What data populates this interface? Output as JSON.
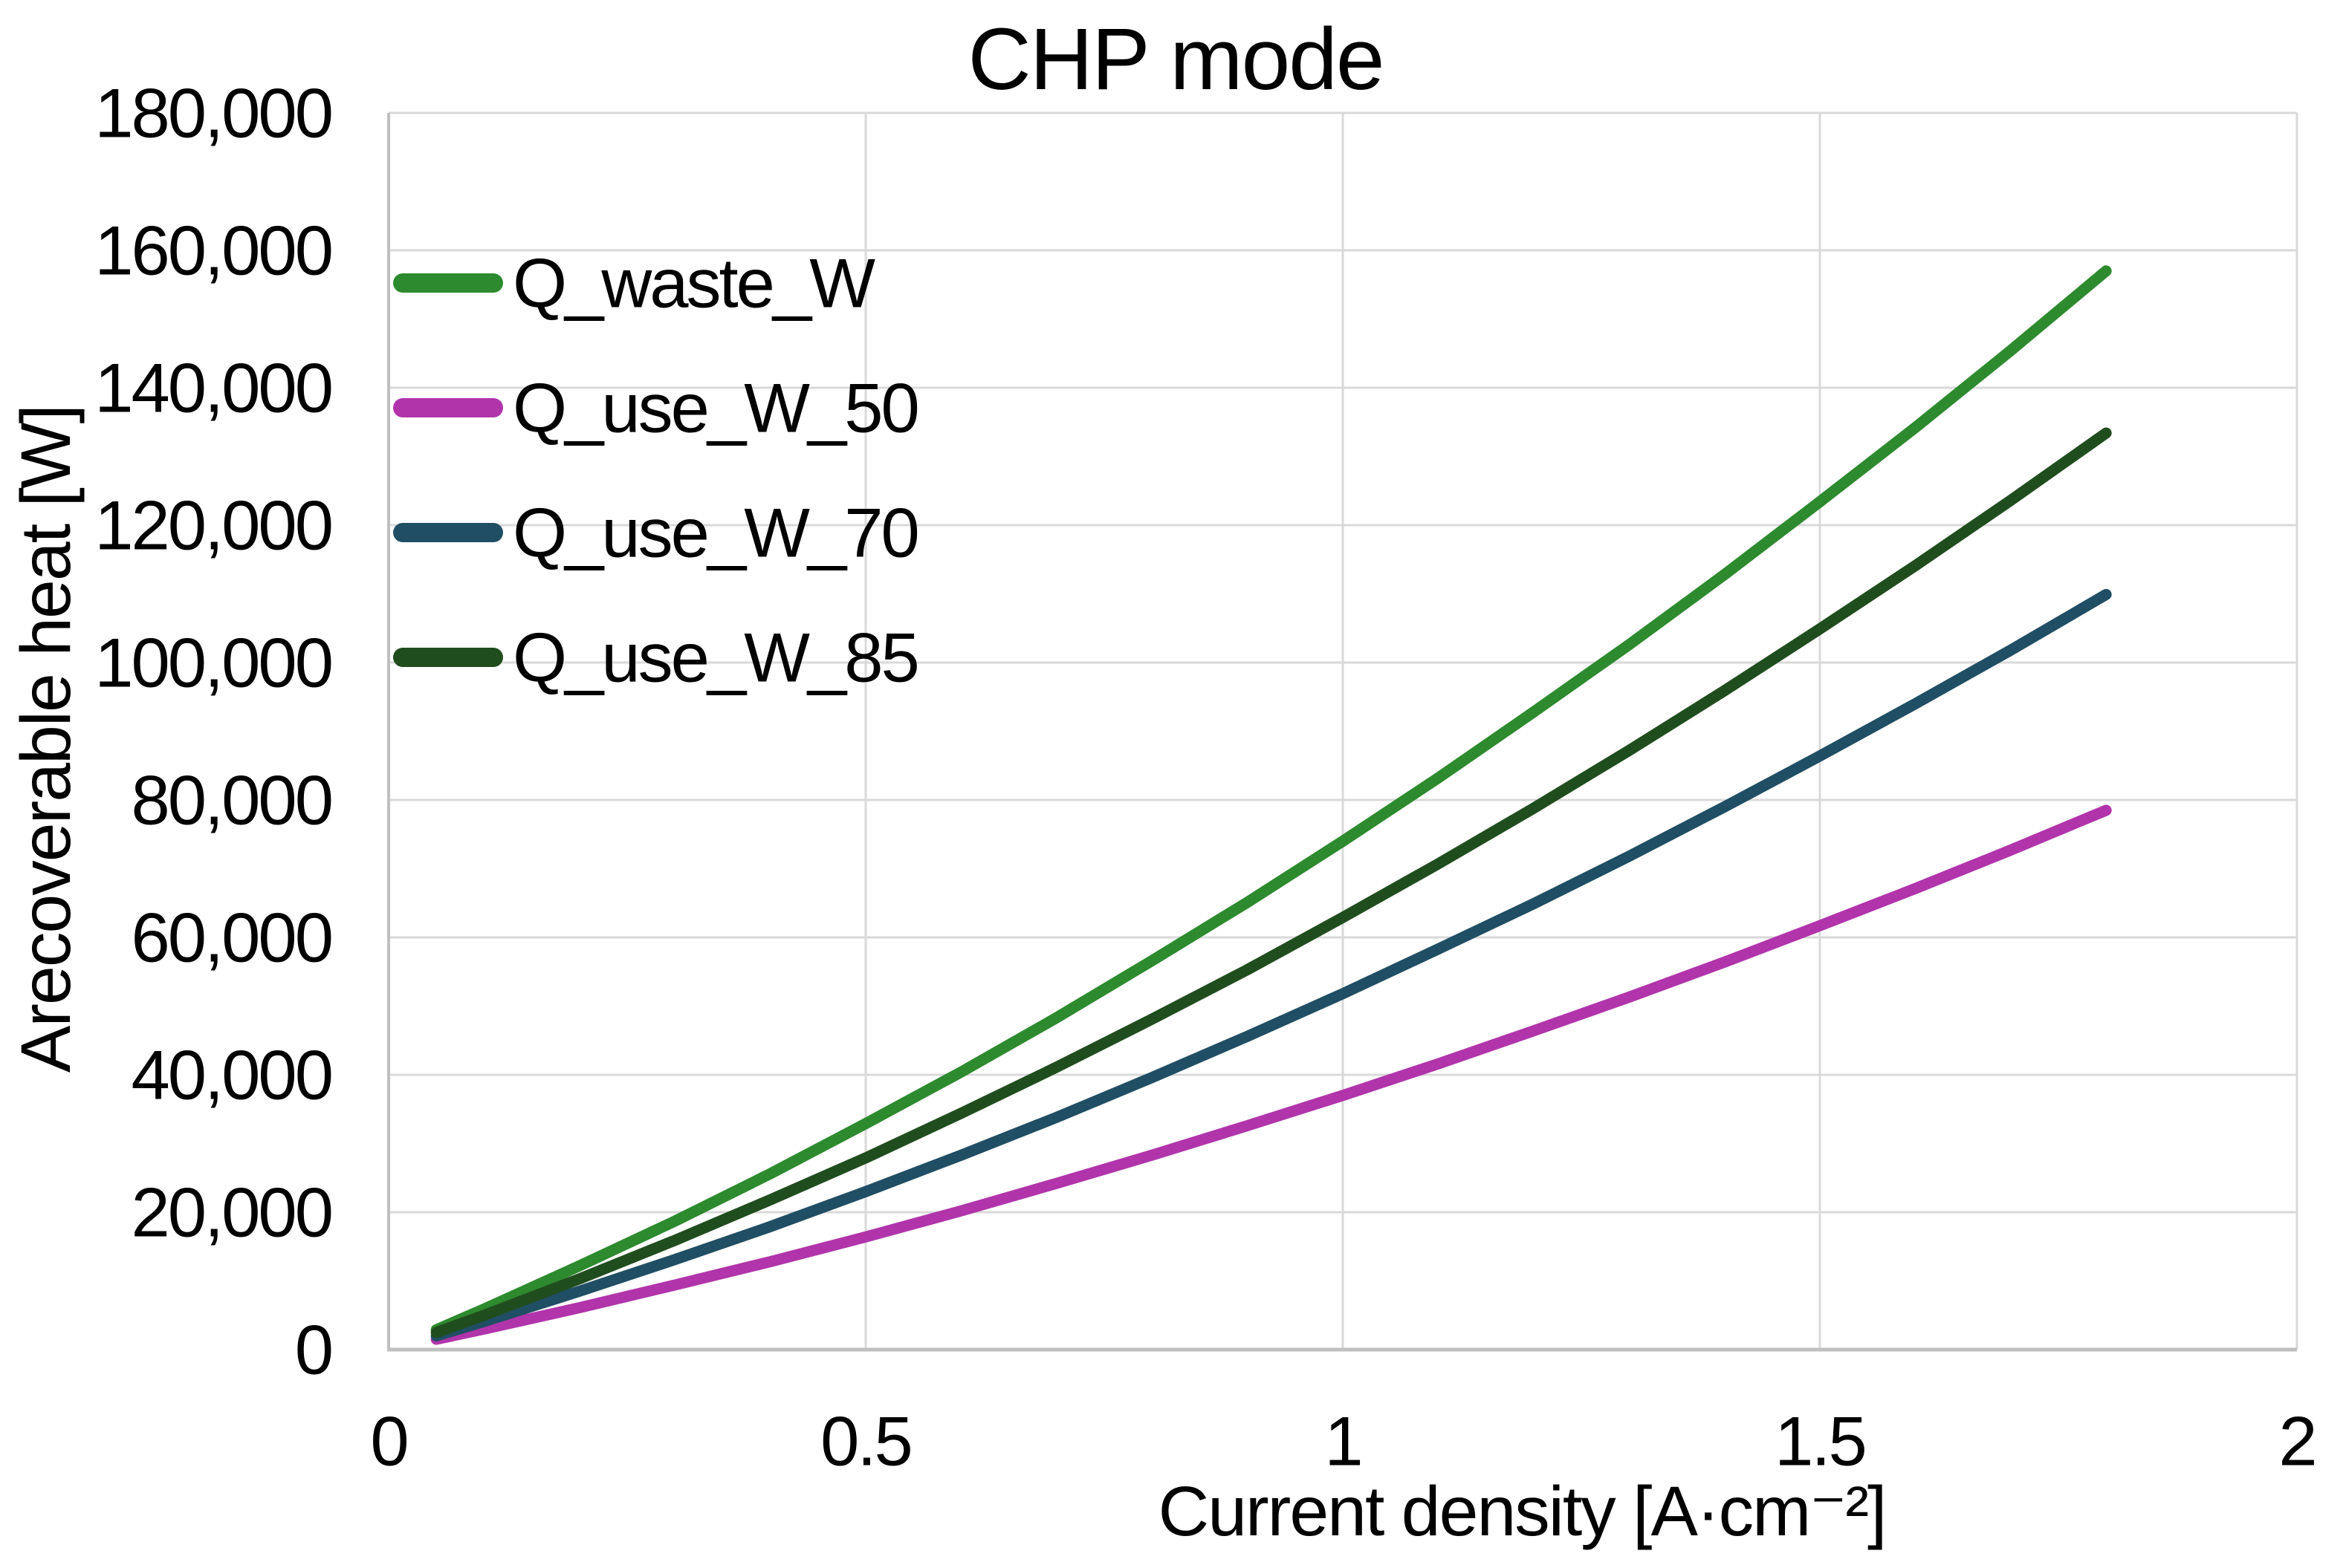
{
  "title": "CHP mode",
  "colors": {
    "background": "#ffffff",
    "gridline": "#d9d9d9",
    "axis_line": "#bfbfbf",
    "text": "#000000"
  },
  "chart_data": {
    "type": "line",
    "title": "CHP mode",
    "xlabel": "Current density [A·cm⁻²]",
    "ylabel": "Arecoverable heat [W]",
    "xlim": [
      0,
      2
    ],
    "ylim": [
      0,
      180000
    ],
    "grid": true,
    "legend_position": "inside-top-left",
    "x_ticks": {
      "values": [
        0,
        0.5,
        1,
        1.5,
        2
      ],
      "labels": [
        "0",
        "0.5",
        "1",
        "1.5",
        "2"
      ]
    },
    "y_ticks": {
      "values": [
        0,
        20000,
        40000,
        60000,
        80000,
        100000,
        120000,
        140000,
        160000,
        180000
      ],
      "labels": [
        "0",
        "20,000",
        "40,000",
        "60,000",
        "80,000",
        "100,000",
        "120,000",
        "140,000",
        "160,000",
        "180,000"
      ]
    },
    "x": [
      0.05,
      0.1,
      0.2,
      0.3,
      0.4,
      0.5,
      0.6,
      0.7,
      0.8,
      0.9,
      1.0,
      1.1,
      1.2,
      1.3,
      1.4,
      1.5,
      1.6,
      1.7,
      1.8
    ],
    "series": [
      {
        "name": "Q_waste_W",
        "color": "#2d8a2e",
        "values": [
          2900,
          5900,
          12200,
          18700,
          25600,
          32900,
          40400,
          48300,
          56600,
          65100,
          74000,
          83200,
          92800,
          102600,
          112800,
          123400,
          134200,
          145400,
          157000
        ]
      },
      {
        "name": "Q_use_W_50",
        "color": "#b134ab",
        "values": [
          1500,
          3000,
          6100,
          9400,
          12800,
          16400,
          20200,
          24200,
          28300,
          32600,
          37000,
          41600,
          46400,
          51300,
          56400,
          61700,
          67100,
          72700,
          78500
        ]
      },
      {
        "name": "Q_use_W_70",
        "color": "#204e64",
        "values": [
          2000,
          4100,
          8500,
          13100,
          17900,
          23000,
          28300,
          33800,
          39600,
          45600,
          51800,
          58300,
          64900,
          71800,
          79000,
          86400,
          94000,
          101800,
          109900
        ]
      },
      {
        "name": "Q_use_W_85",
        "color": "#204d1e",
        "values": [
          2500,
          5000,
          10300,
          15900,
          21800,
          27900,
          34400,
          41100,
          48100,
          55300,
          62900,
          70700,
          78800,
          87200,
          95900,
          104900,
          114100,
          123600,
          133400
        ]
      }
    ]
  }
}
